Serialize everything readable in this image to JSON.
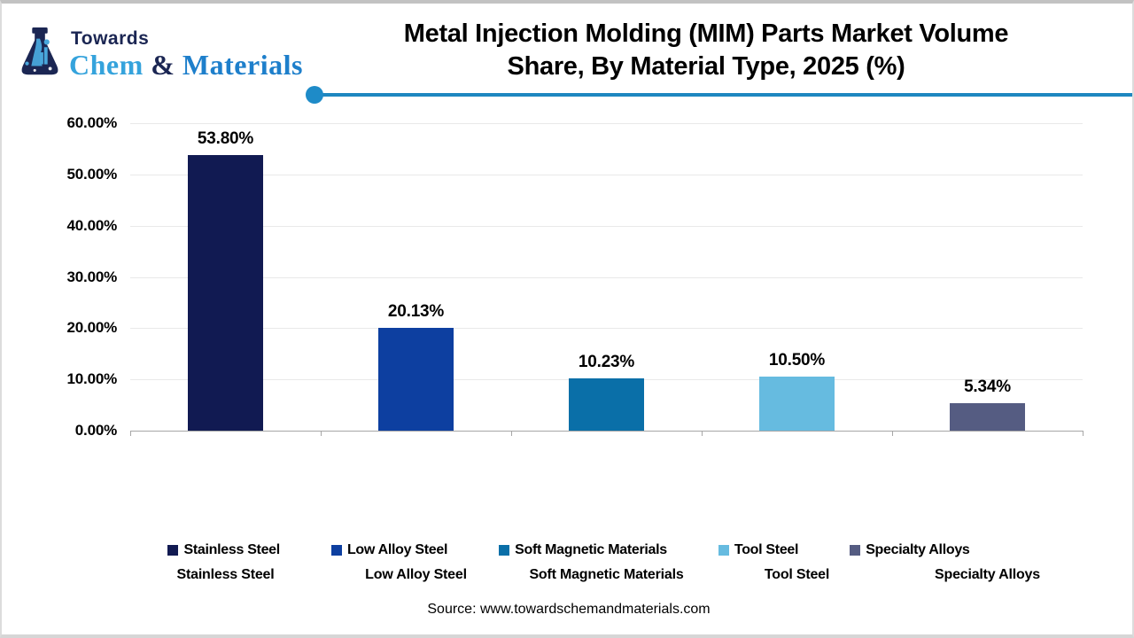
{
  "logo": {
    "towards": "Towards",
    "chem": "Chem",
    "amp": " & ",
    "materials": "Materials",
    "navy": "#1b2653",
    "chem_blue": "#35a3dc",
    "materials_blue": "#1e7fcb"
  },
  "title": {
    "line1": "Metal Injection Molding (MIM) Parts Market Volume",
    "line2": "Share, By Material Type, 2025 (%)"
  },
  "accent": {
    "line_color": "#1e87c0"
  },
  "chart_data": {
    "type": "bar",
    "title": "Metal Injection Molding (MIM) Parts Market Volume Share, By Material Type, 2025 (%)",
    "categories": [
      "Stainless Steel",
      "Low Alloy Steel",
      "Soft Magnetic Materials",
      "Tool Steel",
      "Specialty Alloys"
    ],
    "values": [
      53.8,
      20.13,
      10.23,
      10.5,
      5.34
    ],
    "value_labels": [
      "53.80%",
      "20.13%",
      "10.23%",
      "10.50%",
      "5.34%"
    ],
    "bar_colors": [
      "#111a52",
      "#0d3fa0",
      "#0a6fa8",
      "#66bbe0",
      "#555c82"
    ],
    "xlabel": "",
    "ylabel": "",
    "ylim": [
      0,
      60
    ],
    "ytick_labels": [
      "0.00%",
      "10.00%",
      "20.00%",
      "30.00%",
      "40.00%",
      "50.00%",
      "60.00%"
    ],
    "grid": true,
    "legend_position": "bottom"
  },
  "legend": {
    "items": [
      {
        "label": "Stainless Steel",
        "color": "#111a52"
      },
      {
        "label": "Low Alloy Steel",
        "color": "#0d3fa0"
      },
      {
        "label": "Soft Magnetic Materials",
        "color": "#0a6fa8"
      },
      {
        "label": "Tool Steel",
        "color": "#66bbe0"
      },
      {
        "label": "Specialty Alloys",
        "color": "#555c82"
      }
    ]
  },
  "source": "Source: www.towardschemandmaterials.com"
}
